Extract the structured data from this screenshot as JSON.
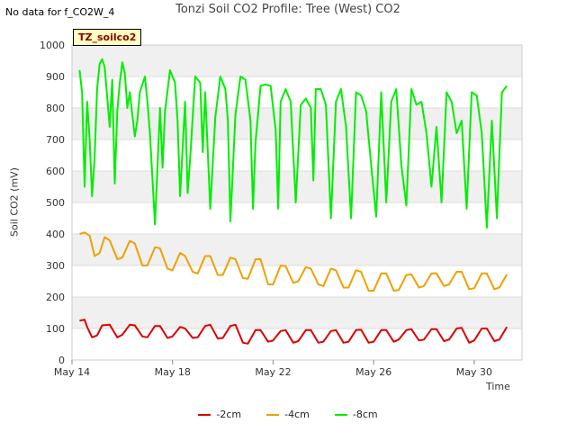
{
  "header": {
    "nodata": "No data for f_CO2W_4",
    "title": "Tonzi Soil CO2 Profile: Tree (West) CO2",
    "badge": "TZ_soilco2"
  },
  "chart_data": {
    "type": "line",
    "title": "Tonzi Soil CO2 Profile: Tree (West) CO2",
    "xlabel": "Time",
    "ylabel": "Soil CO2 (mV)",
    "xlim": [
      14,
      31.9
    ],
    "ylim": [
      0,
      1000
    ],
    "yticks": [
      0,
      100,
      200,
      300,
      400,
      500,
      600,
      700,
      800,
      900,
      1000
    ],
    "xticks": [
      {
        "value": 14,
        "label": "May 14"
      },
      {
        "value": 18,
        "label": "May 18"
      },
      {
        "value": 22,
        "label": "May 22"
      },
      {
        "value": 26,
        "label": "May 26"
      },
      {
        "value": 30,
        "label": "May 30"
      }
    ],
    "grid": true,
    "legend_position": "bottom-center",
    "series": [
      {
        "name": "-2cm",
        "color": "#dd0000",
        "x": [
          14.3,
          14.5,
          14.6,
          14.8,
          15.0,
          15.2,
          15.5,
          15.8,
          16.0,
          16.3,
          16.5,
          16.8,
          17.0,
          17.3,
          17.5,
          17.8,
          18.0,
          18.3,
          18.5,
          18.8,
          19.0,
          19.3,
          19.5,
          19.8,
          20.0,
          20.3,
          20.5,
          20.8,
          21.0,
          21.3,
          21.5,
          21.8,
          22.0,
          22.3,
          22.5,
          22.8,
          23.0,
          23.3,
          23.5,
          23.8,
          24.0,
          24.3,
          24.5,
          24.8,
          25.0,
          25.3,
          25.5,
          25.8,
          26.0,
          26.3,
          26.5,
          26.8,
          27.0,
          27.3,
          27.5,
          27.8,
          28.0,
          28.3,
          28.5,
          28.8,
          29.0,
          29.3,
          29.5,
          29.8,
          30.0,
          30.3,
          30.5,
          30.8,
          31.0,
          31.3
        ],
        "y": [
          125,
          128,
          105,
          72,
          78,
          110,
          112,
          72,
          80,
          112,
          110,
          75,
          72,
          108,
          108,
          70,
          75,
          105,
          100,
          70,
          72,
          108,
          112,
          68,
          70,
          108,
          112,
          55,
          52,
          95,
          95,
          58,
          62,
          92,
          95,
          55,
          60,
          95,
          95,
          55,
          58,
          92,
          95,
          55,
          58,
          95,
          96,
          55,
          58,
          95,
          95,
          58,
          65,
          95,
          98,
          62,
          65,
          98,
          98,
          60,
          65,
          100,
          102,
          55,
          62,
          100,
          100,
          60,
          65,
          105
        ]
      },
      {
        "name": "-4cm",
        "color": "#f0a000",
        "x": [
          14.3,
          14.5,
          14.7,
          14.9,
          15.1,
          15.3,
          15.5,
          15.8,
          16.0,
          16.3,
          16.5,
          16.8,
          17.0,
          17.3,
          17.5,
          17.8,
          18.0,
          18.3,
          18.5,
          18.8,
          19.0,
          19.3,
          19.5,
          19.8,
          20.0,
          20.3,
          20.5,
          20.8,
          21.0,
          21.3,
          21.5,
          21.8,
          22.0,
          22.3,
          22.5,
          22.8,
          23.0,
          23.3,
          23.5,
          23.8,
          24.0,
          24.3,
          24.5,
          24.8,
          25.0,
          25.3,
          25.5,
          25.8,
          26.0,
          26.3,
          26.5,
          26.8,
          27.0,
          27.3,
          27.5,
          27.8,
          28.0,
          28.3,
          28.5,
          28.8,
          29.0,
          29.3,
          29.5,
          29.8,
          30.0,
          30.3,
          30.5,
          30.8,
          31.0,
          31.3
        ],
        "y": [
          400,
          405,
          395,
          330,
          340,
          390,
          380,
          320,
          325,
          378,
          370,
          300,
          300,
          358,
          355,
          290,
          285,
          340,
          330,
          280,
          275,
          330,
          330,
          270,
          270,
          325,
          320,
          260,
          258,
          320,
          320,
          240,
          240,
          300,
          298,
          245,
          250,
          295,
          290,
          240,
          235,
          290,
          285,
          230,
          230,
          285,
          280,
          220,
          220,
          275,
          275,
          220,
          222,
          270,
          272,
          230,
          235,
          275,
          275,
          235,
          240,
          280,
          280,
          225,
          228,
          275,
          275,
          225,
          230,
          272
        ]
      },
      {
        "name": "-8cm",
        "color": "#00ee00",
        "x": [
          14.3,
          14.4,
          14.5,
          14.6,
          14.7,
          14.8,
          14.9,
          15.0,
          15.1,
          15.2,
          15.3,
          15.5,
          15.6,
          15.7,
          15.8,
          15.9,
          16.0,
          16.1,
          16.2,
          16.3,
          16.5,
          16.6,
          16.7,
          16.9,
          17.0,
          17.1,
          17.3,
          17.5,
          17.6,
          17.7,
          17.9,
          18.1,
          18.2,
          18.3,
          18.5,
          18.6,
          18.7,
          18.9,
          19.1,
          19.2,
          19.3,
          19.5,
          19.7,
          19.9,
          20.1,
          20.2,
          20.3,
          20.5,
          20.7,
          20.9,
          21.1,
          21.2,
          21.3,
          21.5,
          21.7,
          21.9,
          22.1,
          22.2,
          22.3,
          22.5,
          22.7,
          22.9,
          23.1,
          23.3,
          23.5,
          23.6,
          23.7,
          23.9,
          24.1,
          24.3,
          24.5,
          24.7,
          24.9,
          25.1,
          25.3,
          25.5,
          25.7,
          25.9,
          26.1,
          26.3,
          26.5,
          26.7,
          26.9,
          27.1,
          27.3,
          27.5,
          27.7,
          27.9,
          28.1,
          28.3,
          28.5,
          28.7,
          28.9,
          29.1,
          29.3,
          29.5,
          29.7,
          29.9,
          30.1,
          30.3,
          30.5,
          30.7,
          30.9,
          31.1,
          31.3
        ],
        "y": [
          920,
          850,
          550,
          820,
          700,
          520,
          640,
          860,
          940,
          955,
          930,
          740,
          890,
          560,
          790,
          880,
          945,
          910,
          800,
          850,
          710,
          760,
          850,
          900,
          820,
          720,
          430,
          800,
          610,
          790,
          920,
          880,
          760,
          520,
          820,
          530,
          640,
          900,
          880,
          660,
          850,
          480,
          770,
          900,
          860,
          760,
          440,
          780,
          900,
          890,
          760,
          480,
          690,
          870,
          875,
          870,
          730,
          480,
          820,
          860,
          820,
          500,
          810,
          830,
          800,
          570,
          860,
          860,
          810,
          450,
          820,
          860,
          740,
          450,
          850,
          840,
          790,
          620,
          455,
          850,
          500,
          820,
          860,
          620,
          490,
          860,
          810,
          820,
          720,
          550,
          740,
          500,
          850,
          820,
          720,
          760,
          480,
          850,
          840,
          720,
          420,
          760,
          450,
          850,
          870
        ]
      }
    ]
  }
}
